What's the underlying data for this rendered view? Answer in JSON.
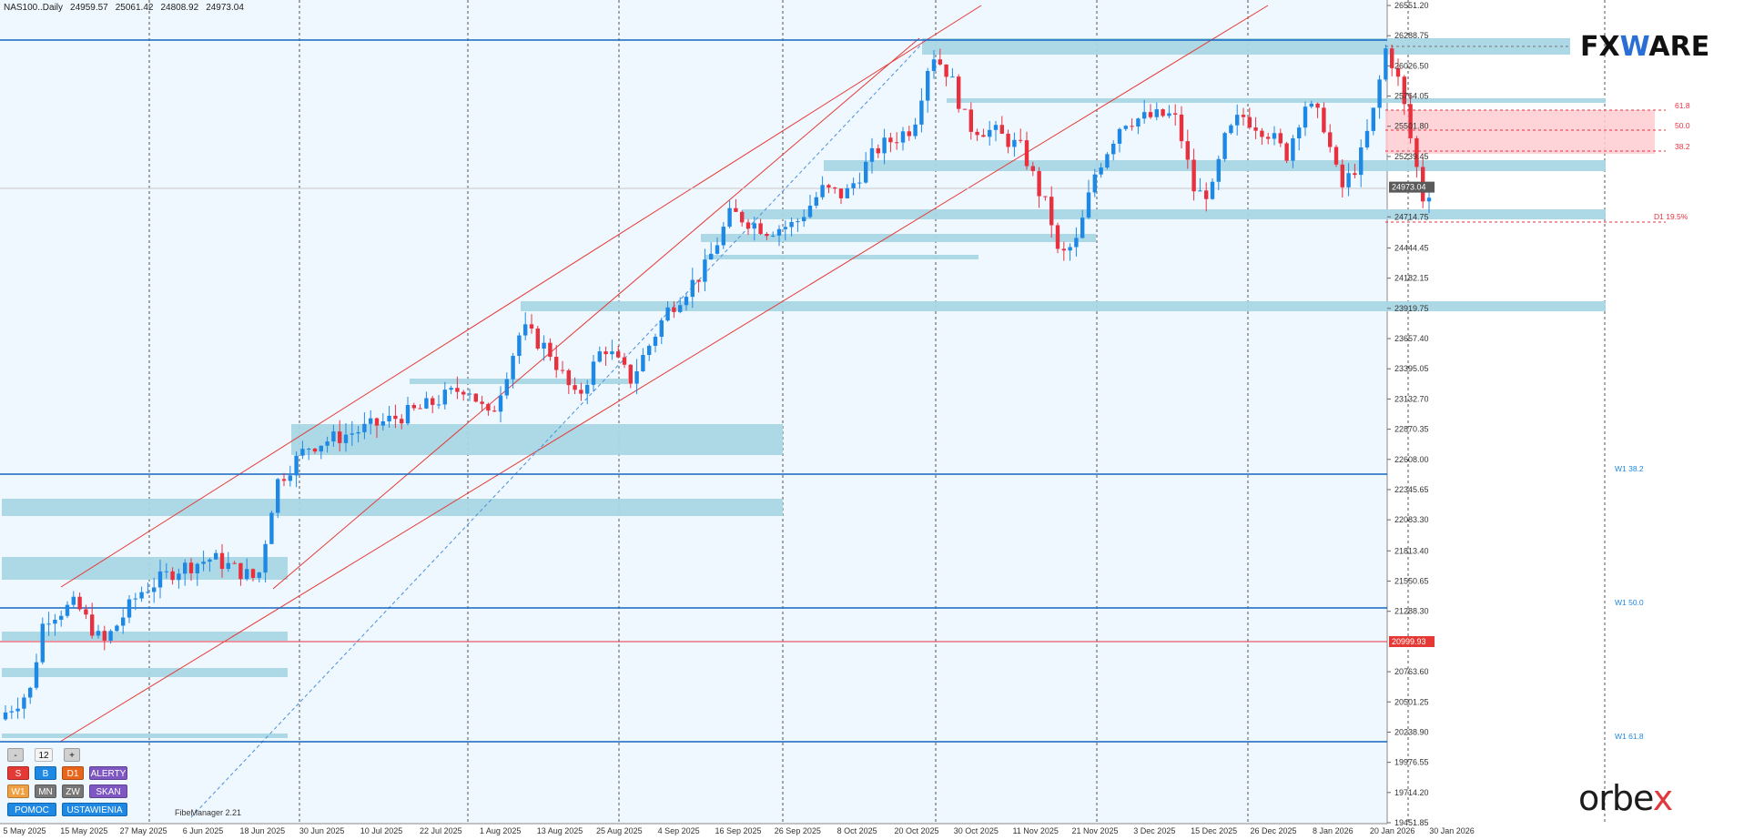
{
  "header": {
    "symbol": "NAS100..Daily",
    "open": "24959.57",
    "high": "25061.42",
    "low": "24808.92",
    "close": "24973.04"
  },
  "logos": {
    "fxware_pre": "FX",
    "fxware_accent": "W",
    "fxware_post": "ARE",
    "orbex_pre": "orbe",
    "orbex_accent": "x"
  },
  "colors": {
    "background": "#f0f8ff",
    "bull": "#1e88e5",
    "bear": "#e8313f",
    "zone": "#a9d6e5",
    "channel": "#e53935",
    "level": "#1565c0",
    "fibzone": "#ffcdd2"
  },
  "price_axis": {
    "ticks": [
      "26551.20",
      "26288.75",
      "26026.50",
      "25764.05",
      "25501.80",
      "25239.45",
      "24714.75",
      "24444.45",
      "24182.15",
      "23919.75",
      "23657.40",
      "23395.05",
      "23132.70",
      "22870.35",
      "22608.00",
      "22345.65",
      "22083.30",
      "21813.40",
      "21550.65",
      "21288.30",
      "20763.60",
      "20501.25",
      "20238.90",
      "19976.55",
      "19714.20",
      "19451.85"
    ],
    "current_price": "24973.04",
    "red_line_price": "20999.93"
  },
  "time_axis": {
    "ticks": [
      "5 May 2025",
      "15 May 2025",
      "27 May 2025",
      "6 Jun 2025",
      "18 Jun 2025",
      "30 Jun 2025",
      "10 Jul 2025",
      "22 Jul 2025",
      "1 Aug 2025",
      "13 Aug 2025",
      "25 Aug 2025",
      "4 Sep 2025",
      "16 Sep 2025",
      "26 Sep 2025",
      "8 Oct 2025",
      "20 Oct 2025",
      "30 Oct 2025",
      "11 Nov 2025",
      "21 Nov 2025",
      "3 Dec 2025",
      "15 Dec 2025",
      "26 Dec 2025",
      "8 Jan 2026",
      "20 Jan 2026",
      "30 Jan 2026"
    ]
  },
  "level_labels": {
    "w1_382": "W1 38.2",
    "w1_500": "W1 50.0",
    "w1_618": "W1 61.8",
    "fib_618": "61.8",
    "fib_500": "50.0",
    "fib_382": "38.2",
    "d1_195": "D1 19.5%"
  },
  "panel": {
    "minus": "-",
    "value": "12",
    "plus": "+",
    "s": "S",
    "b": "B",
    "d1": "D1",
    "alerty": "ALERTY",
    "w1": "W1",
    "mn": "MN",
    "zw": "ZW",
    "skan": "SKAN",
    "pomoc": "POMOC",
    "ustawienia": "USTAWIENIA"
  },
  "fibe_manager": "FibeManager 2.21"
}
